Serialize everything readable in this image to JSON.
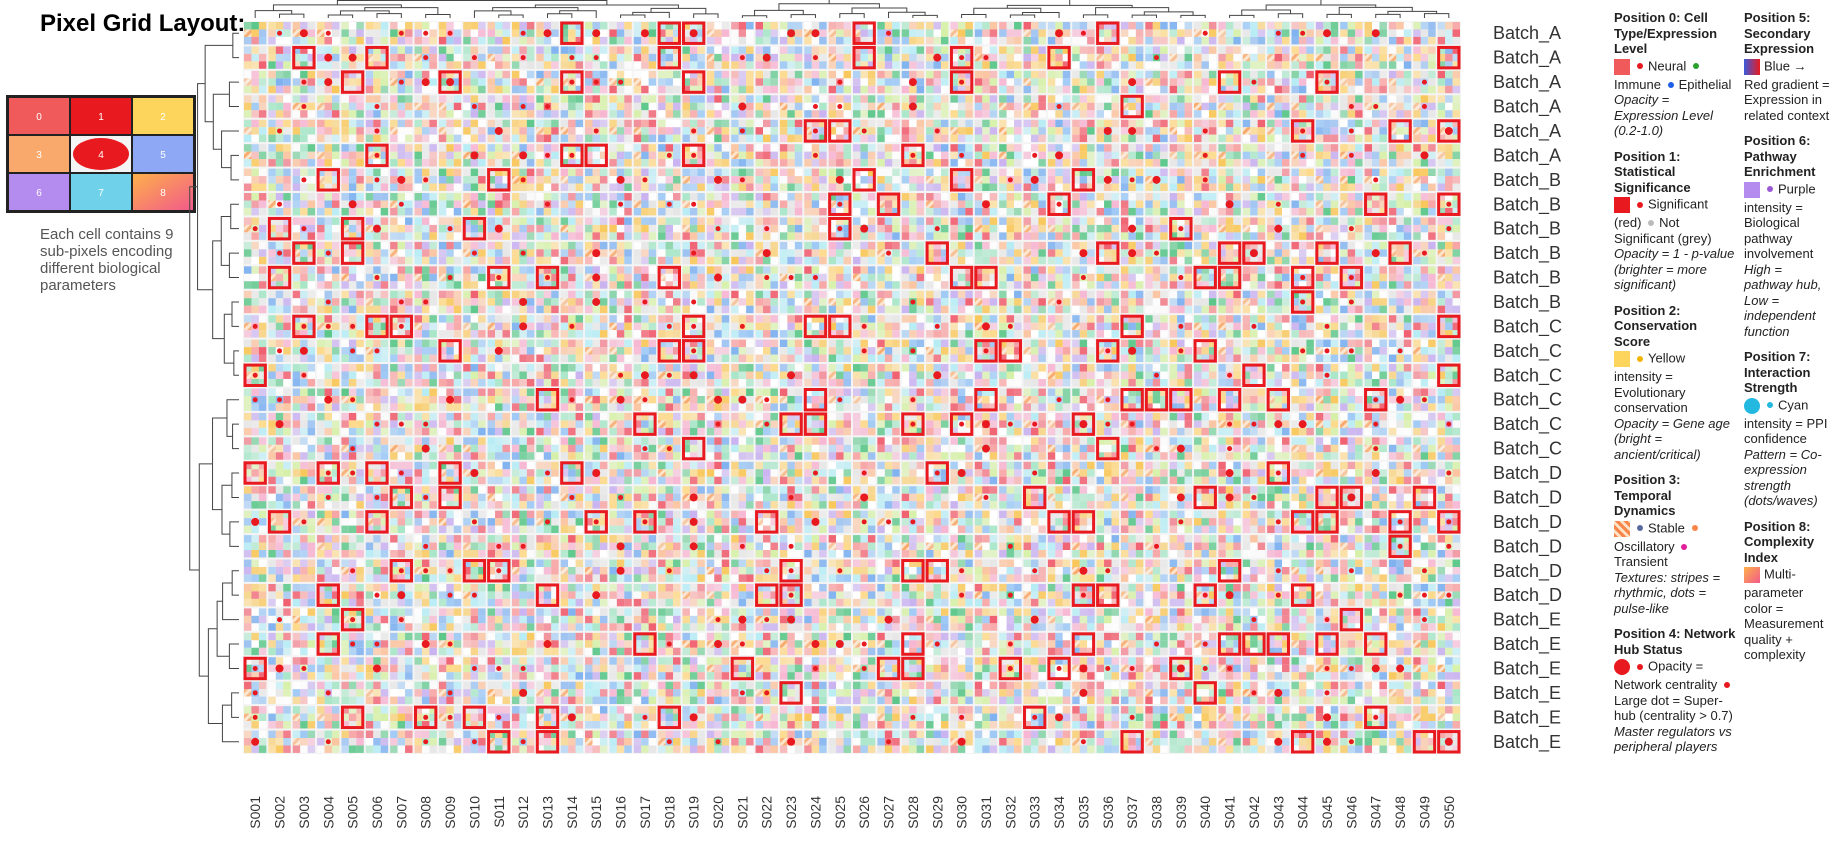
{
  "title": "Pixel Grid Layout:",
  "mini_grid": {
    "labels": [
      "0",
      "1",
      "2",
      "3",
      "4",
      "5",
      "6",
      "7",
      "8"
    ],
    "colors": [
      "#f05a5a",
      "#e8191f",
      "#fdd55c",
      "#f8a96b",
      "#e8191f",
      "#8ea8f5",
      "#b48cf0",
      "#6fd2ea",
      "#f7845f"
    ]
  },
  "caption": "Each cell contains 9 sub-pixels encoding different biological parameters",
  "columns": [
    "S001",
    "S002",
    "S003",
    "S004",
    "S005",
    "S006",
    "S007",
    "S008",
    "S009",
    "S010",
    "S011",
    "S012",
    "S013",
    "S014",
    "S015",
    "S016",
    "S017",
    "S018",
    "S019",
    "S020",
    "S021",
    "S022",
    "S023",
    "S024",
    "S025",
    "S026",
    "S027",
    "S028",
    "S029",
    "S030",
    "S031",
    "S032",
    "S033",
    "S034",
    "S035",
    "S036",
    "S037",
    "S038",
    "S039",
    "S040",
    "S041",
    "S042",
    "S043",
    "S044",
    "S045",
    "S046",
    "S047",
    "S048",
    "S049",
    "S050"
  ],
  "rows": [
    "Batch_A",
    "Batch_A",
    "Batch_A",
    "Batch_A",
    "Batch_A",
    "Batch_A",
    "Batch_B",
    "Batch_B",
    "Batch_B",
    "Batch_B",
    "Batch_B",
    "Batch_B",
    "Batch_C",
    "Batch_C",
    "Batch_C",
    "Batch_C",
    "Batch_C",
    "Batch_C",
    "Batch_D",
    "Batch_D",
    "Batch_D",
    "Batch_D",
    "Batch_D",
    "Batch_D",
    "Batch_E",
    "Batch_E",
    "Batch_E",
    "Batch_E",
    "Batch_E",
    "Batch_E"
  ],
  "legend": [
    {
      "title": "Position 0: Cell Type/Expression Level",
      "swatch": "#f05a5a",
      "items": [
        {
          "text": "Neural",
          "color": "#e8191f"
        },
        {
          "text": "Immune",
          "color": "#2ca02c"
        },
        {
          "text": "Epithelial",
          "color": "#1f5fe8"
        }
      ],
      "note": "Opacity = Expression Level (0.2-1.0)"
    },
    {
      "title": "Position 1: Statistical Significance",
      "swatch": "#e8191f",
      "items": [
        {
          "text": "Significant (red)",
          "color": "#e8191f"
        },
        {
          "text": "Not Significant (grey)",
          "color": "#bbbbbb"
        }
      ],
      "note": "Opacity = 1 - p-value (brighter = more significant)"
    },
    {
      "title": "Position 2: Conservation Score",
      "swatch": "#fdd55c",
      "items": [
        {
          "text": "Yellow intensity = Evolutionary conservation",
          "color": "#f2b400"
        }
      ],
      "note": "Opacity = Gene age (bright = ancient/critical)"
    },
    {
      "title": "Position 3: Temporal Dynamics",
      "swatch": "#f8864a",
      "items": [
        {
          "text": "Stable",
          "color": "#5a6a9a"
        },
        {
          "text": "Oscillatory",
          "color": "#f8864a"
        },
        {
          "text": "Transient",
          "color": "#e0209a"
        }
      ],
      "note": "Textures: stripes = rhythmic, dots = pulse-like"
    },
    {
      "title": "Position 4: Network Hub Status",
      "swatch": "#e8191f",
      "items": [
        {
          "text": "Opacity = Network centrality",
          "color": "#e8191f"
        },
        {
          "text": "Large dot = Super-hub (centrality > 0.7)",
          "color": "#e8191f"
        }
      ],
      "note": "Master regulators vs peripheral players"
    },
    {
      "title": "Position 5: Secondary Expression",
      "swatch": "#7a4fd0",
      "items": [
        {
          "text": "Blue → Red gradient = Expression in related context",
          "color": null
        }
      ],
      "note": null
    },
    {
      "title": "Position 6: Pathway Enrichment",
      "swatch": "#b48cf0",
      "items": [
        {
          "text": "Purple intensity = Biological pathway involvement",
          "color": "#9b59d6"
        }
      ],
      "note": "High = pathway hub, Low = independent function"
    },
    {
      "title": "Position 7: Interaction Strength",
      "swatch": "#22b8e0",
      "items": [
        {
          "text": "Cyan intensity = PPI confidence",
          "color": "#22b8e0"
        }
      ],
      "note": "Pattern = Co-expression strength (dots/waves)"
    },
    {
      "title": "Position 8: Complexity Index",
      "swatch": "#f7845f",
      "items": [
        {
          "text": "Multi-parameter color = Measurement quality + complexity",
          "color": null
        }
      ],
      "note": null
    }
  ]
}
